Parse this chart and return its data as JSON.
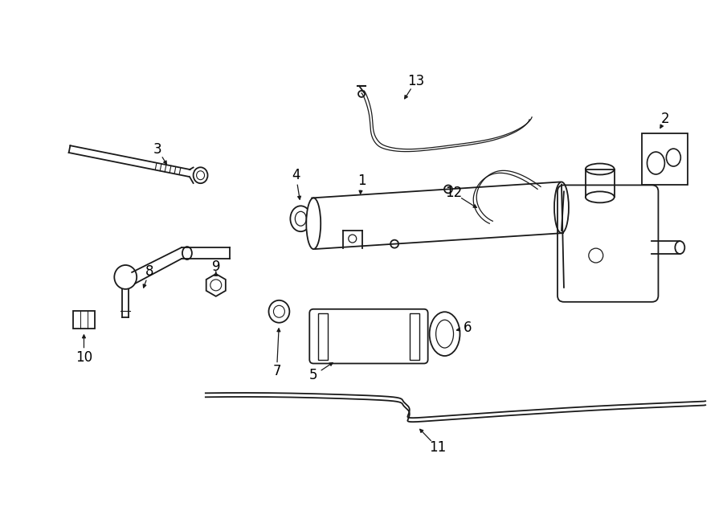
{
  "background_color": "#ffffff",
  "line_color": "#1a1a1a",
  "label_color": "#000000",
  "fig_width": 9.0,
  "fig_height": 6.61,
  "dpi": 100
}
